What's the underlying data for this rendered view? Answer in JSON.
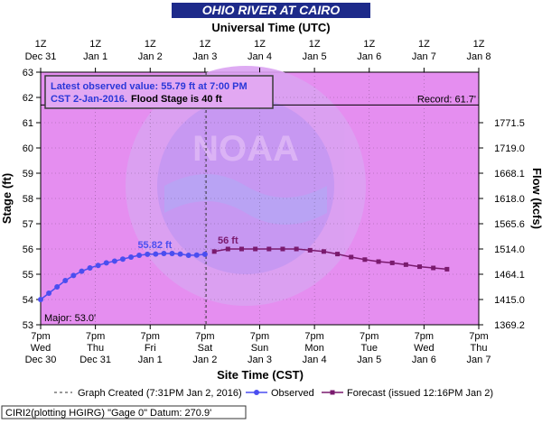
{
  "title": "OHIO RIVER AT CAIRO",
  "top_axis_title": "Universal Time (UTC)",
  "bottom_axis_title": "Site Time (CST)",
  "y_left_label": "Stage (ft)",
  "y_right_label": "Flow (kcfs)",
  "latest_box": {
    "line1": "Latest observed value: 55.79 ft at 7:00 PM",
    "line2_blue": "CST 2-Jan-2016.",
    "line2_black": "Flood Stage is 40 ft"
  },
  "record_label": "Record: 61.7'",
  "major_label": "Major: 53.0'",
  "observed_peak_label": "55.82 ft",
  "forecast_peak_label": "56 ft",
  "watermark_text": "NOAA",
  "legend": {
    "created": "Graph Created (7:31PM Jan 2, 2016)",
    "observed": "Observed",
    "forecast": "Forecast (issued 12:16PM Jan 2)"
  },
  "footer": "CIRI2(plotting HGIRG) \"Gage 0\" Datum: 270.9'",
  "colors": {
    "plot_bg": "#e58ef0",
    "observed": "#4a4ef0",
    "forecast": "#7a1a6e",
    "title_bg": "#1d2a8a",
    "title_text": "#ffffff",
    "box_text": "#2a38d8"
  },
  "chart_data": {
    "type": "line",
    "y_range": [
      53,
      63
    ],
    "y_ticks": [
      53,
      54,
      55,
      56,
      57,
      58,
      59,
      60,
      61,
      62,
      63
    ],
    "right_ticks": [
      {
        "stage": 53,
        "flow": "1369.2"
      },
      {
        "stage": 54,
        "flow": "1415.0"
      },
      {
        "stage": 55,
        "flow": "1464.1"
      },
      {
        "stage": 56,
        "flow": "1514.0"
      },
      {
        "stage": 57,
        "flow": "1565.6"
      },
      {
        "stage": 58,
        "flow": "1618.0"
      },
      {
        "stage": 59,
        "flow": "1668.1"
      },
      {
        "stage": 60,
        "flow": "1719.0"
      },
      {
        "stage": 61,
        "flow": "1771.5"
      }
    ],
    "bottom_ticks": [
      {
        "time": "7pm",
        "day": "Wed",
        "date": "Dec 30"
      },
      {
        "time": "7pm",
        "day": "Thu",
        "date": "Dec 31"
      },
      {
        "time": "7pm",
        "day": "Fri",
        "date": "Jan 1"
      },
      {
        "time": "7pm",
        "day": "Sat",
        "date": "Jan 2"
      },
      {
        "time": "7pm",
        "day": "Sun",
        "date": "Jan 3"
      },
      {
        "time": "7pm",
        "day": "Mon",
        "date": "Jan 4"
      },
      {
        "time": "7pm",
        "day": "Tue",
        "date": "Jan 5"
      },
      {
        "time": "7pm",
        "day": "Wed",
        "date": "Jan 6"
      },
      {
        "time": "7pm",
        "day": "Thu",
        "date": "Jan 7"
      }
    ],
    "top_ticks": [
      {
        "time": "1Z",
        "date": "Dec 31"
      },
      {
        "time": "1Z",
        "date": "Jan 1"
      },
      {
        "time": "1Z",
        "date": "Jan 2"
      },
      {
        "time": "1Z",
        "date": "Jan 3"
      },
      {
        "time": "1Z",
        "date": "Jan 4"
      },
      {
        "time": "1Z",
        "date": "Jan 5"
      },
      {
        "time": "1Z",
        "date": "Jan 6"
      },
      {
        "time": "1Z",
        "date": "Jan 7"
      },
      {
        "time": "1Z",
        "date": "Jan 8"
      }
    ],
    "record_stage": 61.7,
    "major_stage": 53.0,
    "graph_created_x": 3.02,
    "observed": {
      "x": [
        0,
        0.15,
        0.3,
        0.45,
        0.6,
        0.75,
        0.9,
        1.05,
        1.2,
        1.35,
        1.5,
        1.65,
        1.8,
        1.95,
        2.1,
        2.25,
        2.4,
        2.55,
        2.7,
        2.85,
        3.0
      ],
      "y": [
        54.0,
        54.25,
        54.5,
        54.75,
        54.95,
        55.12,
        55.25,
        55.35,
        55.45,
        55.52,
        55.6,
        55.68,
        55.75,
        55.79,
        55.8,
        55.82,
        55.82,
        55.8,
        55.75,
        55.76,
        55.79
      ]
    },
    "forecast": {
      "x": [
        3.17,
        3.42,
        3.67,
        3.92,
        4.17,
        4.42,
        4.67,
        4.92,
        5.17,
        5.42,
        5.67,
        5.92,
        6.17,
        6.42,
        6.67,
        6.92,
        7.17,
        7.42
      ],
      "y": [
        55.9,
        56.0,
        56.0,
        56.0,
        56.0,
        56.0,
        56.0,
        55.95,
        55.9,
        55.8,
        55.68,
        55.58,
        55.5,
        55.45,
        55.38,
        55.3,
        55.25,
        55.2
      ]
    }
  }
}
